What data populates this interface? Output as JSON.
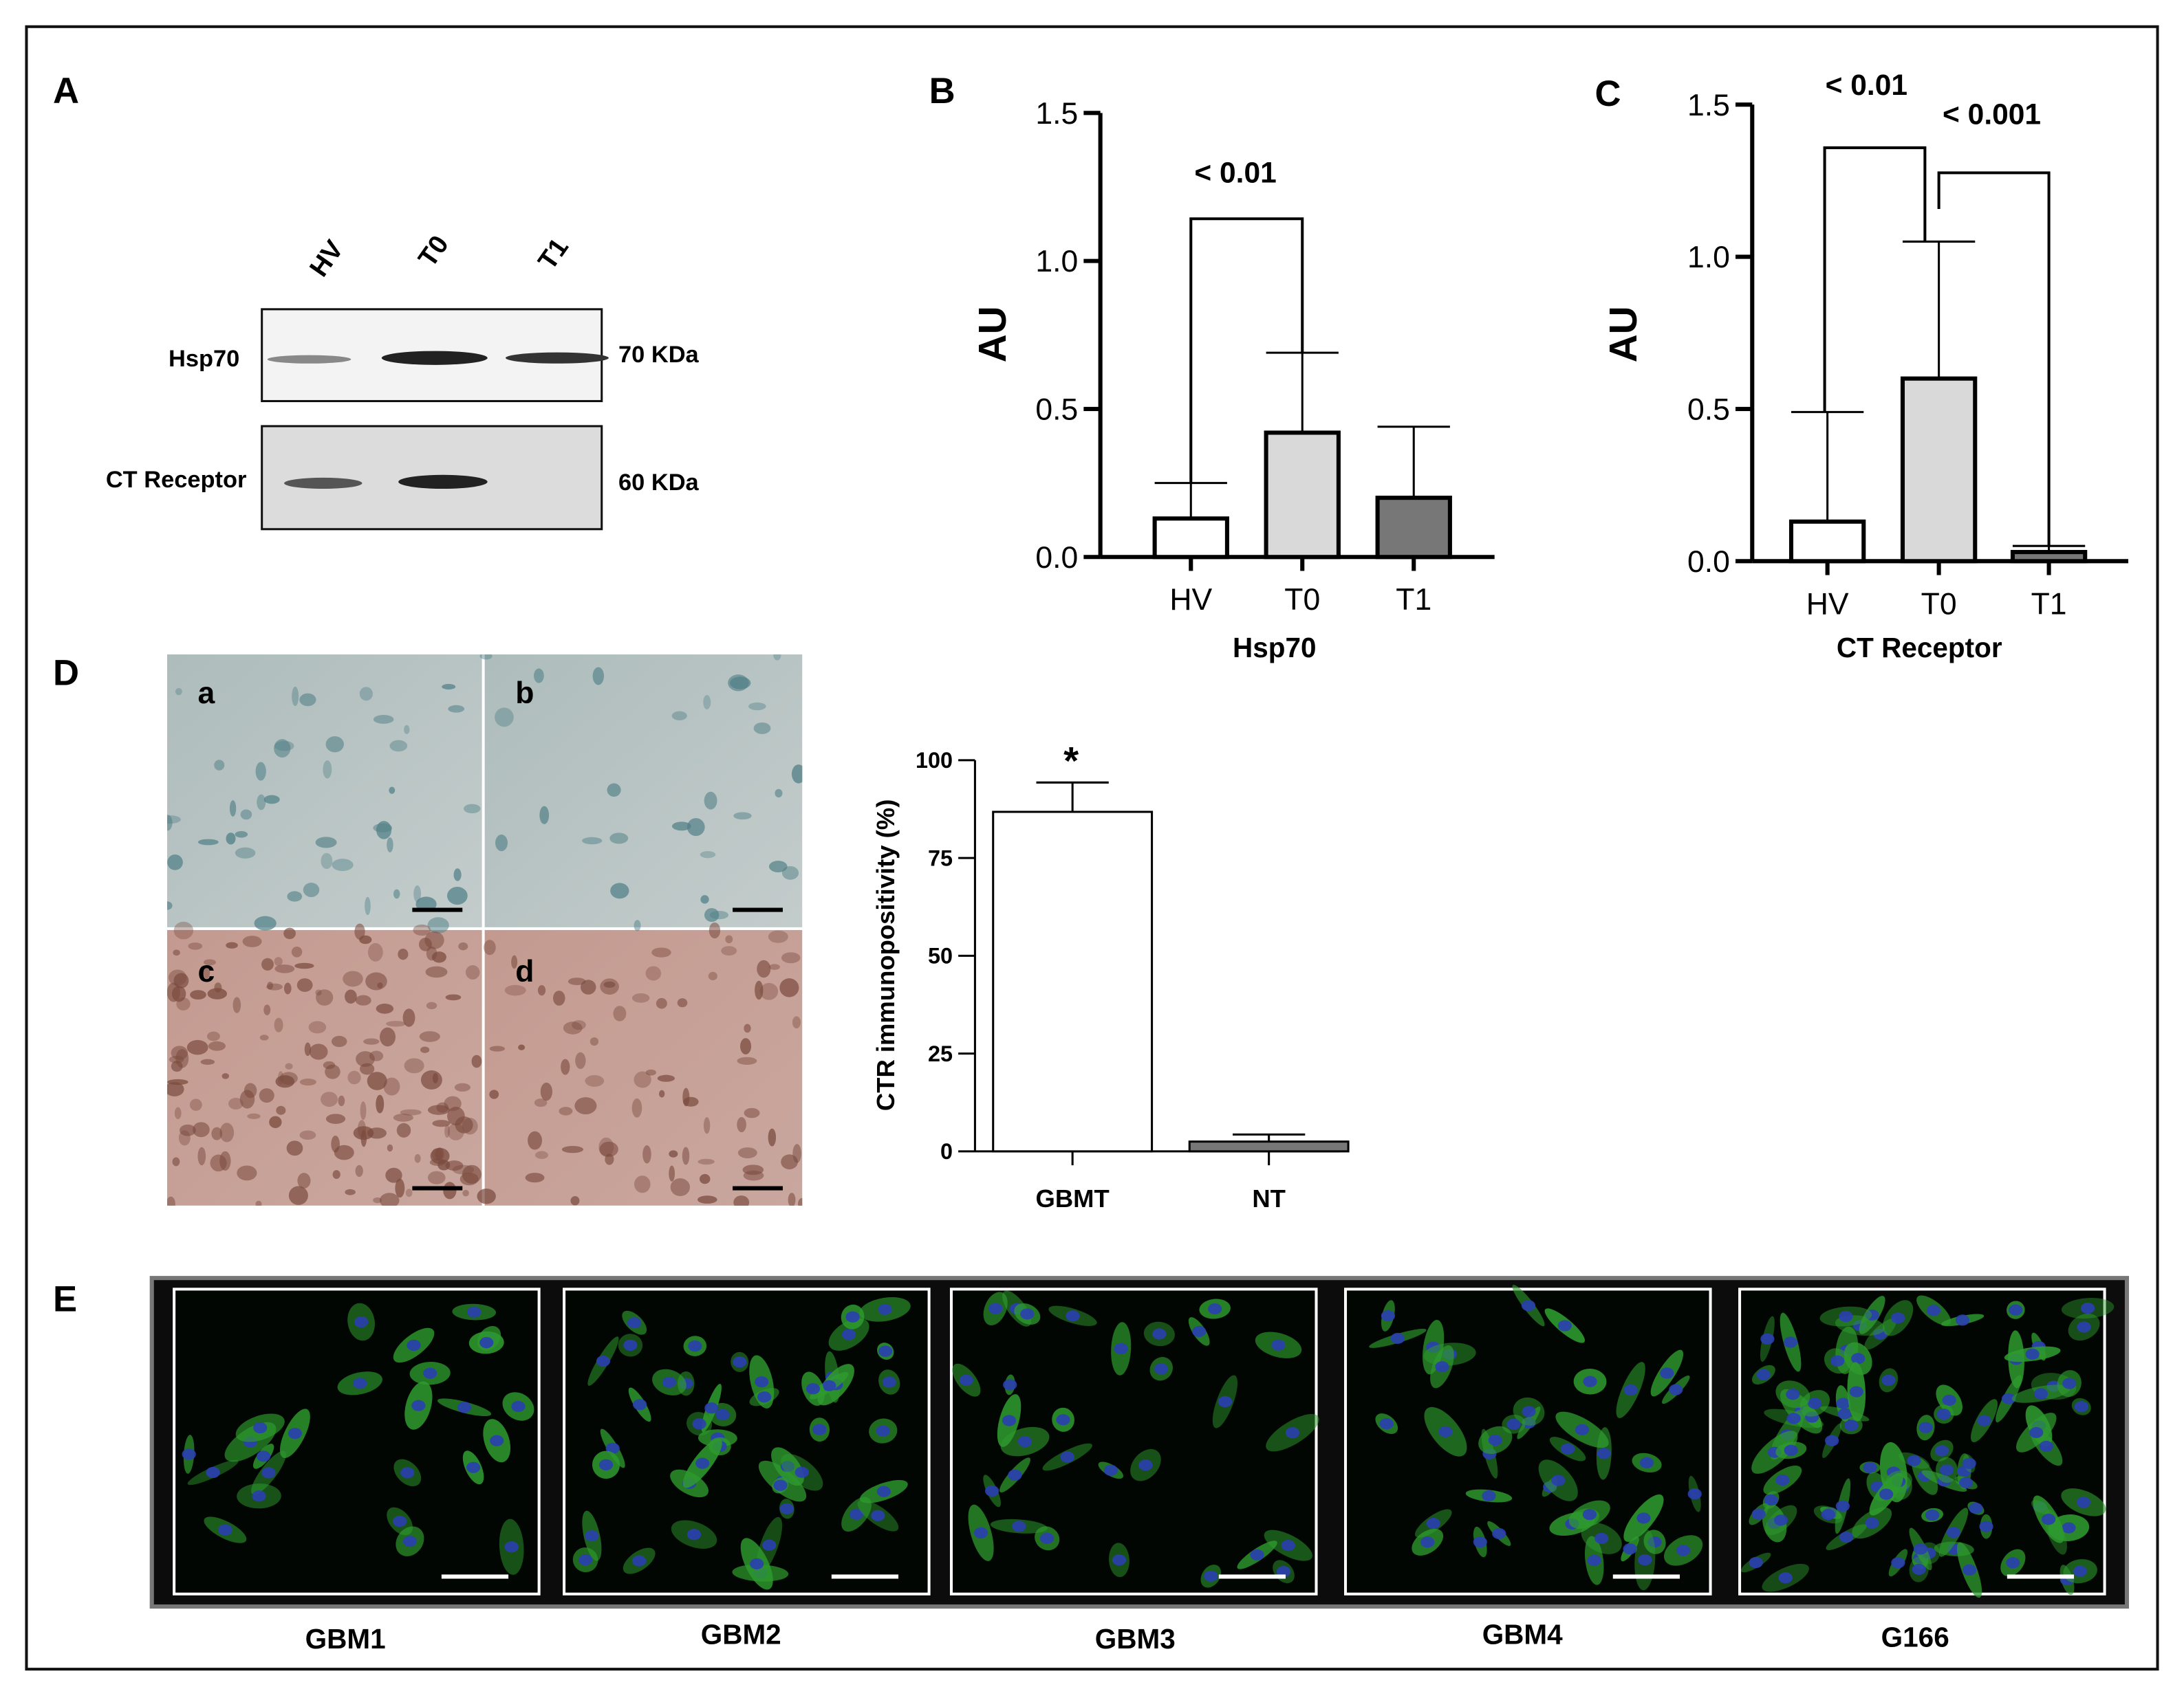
{
  "panels": {
    "letters": [
      "A",
      "B",
      "C",
      "D",
      "E"
    ],
    "blot": {
      "lanes": [
        "HV",
        "T0",
        "T1"
      ],
      "rows": [
        "Hsp70",
        "CT Receptor"
      ],
      "sizes": [
        "70 KDa",
        "60 KDa"
      ]
    },
    "micrographs": [
      "a",
      "b",
      "c",
      "d"
    ],
    "fluorescence": [
      "GBM1",
      "GBM2",
      "GBM3",
      "GBM4",
      "G166"
    ]
  },
  "chart_data": [
    {
      "type": "bar",
      "ylabel": "AU",
      "xlabel": "Hsp70",
      "categories": [
        "HV",
        "T0",
        "T1"
      ],
      "values": [
        0.13,
        0.42,
        0.2
      ],
      "errors": [
        0.12,
        0.27,
        0.24
      ],
      "colors": [
        "#ffffff",
        "#d9d9d9",
        "#777777"
      ],
      "ylim": [
        0,
        1.5
      ],
      "yticks": [
        {
          "value": 0,
          "label": "0.0"
        },
        {
          "value": 0.5,
          "label": "0.5"
        },
        {
          "value": 1,
          "label": "1.0"
        },
        {
          "value": 1.5,
          "label": "1.5"
        }
      ],
      "annotations": [
        "< 0.01"
      ]
    },
    {
      "type": "bar",
      "ylabel": "AU",
      "xlabel": "CT Receptor",
      "categories": [
        "HV",
        "T0",
        "T1"
      ],
      "values": [
        0.13,
        0.6,
        0.03
      ],
      "errors": [
        0.36,
        0.45,
        0.02
      ],
      "colors": [
        "#ffffff",
        "#d9d9d9",
        "#777777"
      ],
      "ylim": [
        0,
        1.5
      ],
      "yticks": [
        {
          "value": 0,
          "label": "0.0"
        },
        {
          "value": 0.5,
          "label": "0.5"
        },
        {
          "value": 1,
          "label": "1.0"
        },
        {
          "value": 1.5,
          "label": "1.5"
        }
      ],
      "annotations": [
        "< 0.01",
        "< 0.001"
      ]
    },
    {
      "type": "bar",
      "ylabel": "CTR immunopositivity (%)",
      "categories": [
        "GBMT",
        "NT"
      ],
      "values": [
        86.8,
        2.5
      ],
      "errors": [
        7.5,
        1.8
      ],
      "colors": [
        "#ffffff",
        "#777777"
      ],
      "ylim": [
        0,
        100
      ],
      "yticks": [
        0,
        25,
        50,
        75,
        100
      ],
      "annotations": [
        "*"
      ]
    }
  ]
}
